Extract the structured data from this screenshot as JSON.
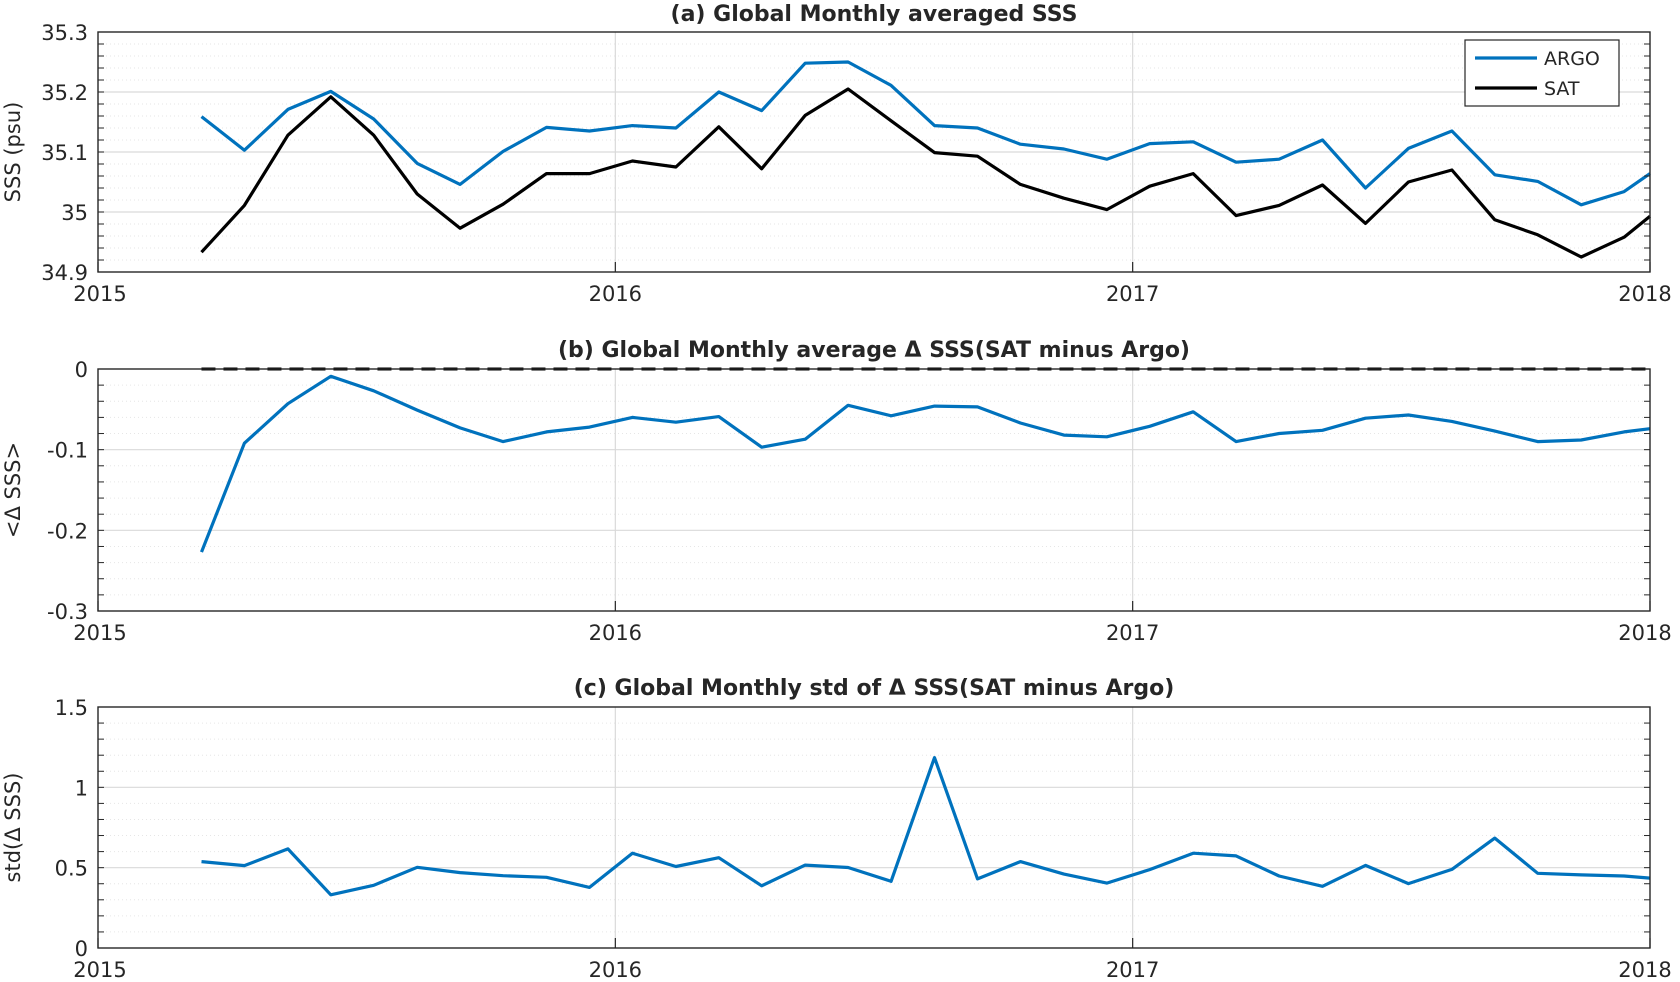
{
  "figure": {
    "background": "#ffffff"
  },
  "colors": {
    "argo": "#0072BD",
    "sat": "#000000",
    "axis": "#262626",
    "grid_major": "#d9d9d9",
    "grid_minor": "#e6e6e6"
  },
  "chart_data": [
    {
      "type": "line",
      "title": "(a) Global Monthly averaged SSS",
      "xlabel": "",
      "ylabel": "SSS (psu)",
      "xlim": [
        2015,
        2018
      ],
      "ylim": [
        34.9,
        35.3
      ],
      "xticks": [
        2015,
        2016,
        2017,
        2018
      ],
      "xtick_labels": [
        "2015",
        "2016",
        "2017",
        "2018"
      ],
      "yticks": [
        34.9,
        35,
        35.1,
        35.2,
        35.3
      ],
      "ytick_labels": [
        "34.9",
        "35",
        "35.1",
        "35.2",
        "35.3"
      ],
      "minor_yticks_step": 0.02,
      "grid": true,
      "legend": {
        "placement": "top-right",
        "entries": [
          "ARGO",
          "SAT"
        ]
      },
      "x": [
        2015.2,
        2015.283,
        2015.367,
        2015.45,
        2015.533,
        2015.617,
        2015.7,
        2015.783,
        2015.867,
        2015.95,
        2016.033,
        2016.117,
        2016.2,
        2016.283,
        2016.367,
        2016.45,
        2016.533,
        2016.617,
        2016.7,
        2016.783,
        2016.867,
        2016.95,
        2017.033,
        2017.117,
        2017.2,
        2017.283,
        2017.367,
        2017.45,
        2017.533,
        2017.617,
        2017.7,
        2017.783,
        2017.867,
        2017.95,
        2018.0
      ],
      "series": [
        {
          "name": "ARGO",
          "color": "#0072BD",
          "values": [
            35.159,
            35.103,
            35.171,
            35.201,
            35.155,
            35.081,
            35.046,
            35.101,
            35.141,
            35.135,
            35.144,
            35.14,
            35.2,
            35.169,
            35.248,
            35.25,
            35.211,
            35.144,
            35.14,
            35.113,
            35.105,
            35.088,
            35.114,
            35.117,
            35.083,
            35.088,
            35.12,
            35.04,
            35.106,
            35.135,
            35.062,
            35.051,
            35.012,
            35.034,
            35.064
          ]
        },
        {
          "name": "SAT",
          "color": "#000000",
          "values": [
            34.933,
            35.011,
            35.128,
            35.192,
            35.128,
            35.03,
            34.973,
            35.013,
            35.064,
            35.064,
            35.085,
            35.075,
            35.142,
            35.072,
            35.161,
            35.205,
            35.152,
            35.099,
            35.093,
            35.046,
            35.023,
            35.004,
            35.043,
            35.064,
            34.994,
            35.011,
            35.045,
            34.981,
            35.05,
            35.07,
            34.987,
            34.962,
            34.925,
            34.958,
            34.993
          ]
        }
      ]
    },
    {
      "type": "line",
      "title": "(b) Global Monthly average Δ SSS(SAT minus Argo)",
      "xlabel": "",
      "ylabel": "<Δ SSS>",
      "xlim": [
        2015,
        2018
      ],
      "ylim": [
        -0.3,
        0
      ],
      "xticks": [
        2015,
        2016,
        2017,
        2018
      ],
      "xtick_labels": [
        "2015",
        "2016",
        "2017",
        "2018"
      ],
      "yticks": [
        -0.3,
        -0.2,
        -0.1,
        0
      ],
      "ytick_labels": [
        "-0.3",
        "-0.2",
        "-0.1",
        "0"
      ],
      "minor_yticks_step": 0.02,
      "grid": true,
      "reference_line": {
        "y": 0,
        "style": "dashed",
        "color": "#000000"
      },
      "x": [
        2015.2,
        2015.283,
        2015.367,
        2015.45,
        2015.533,
        2015.617,
        2015.7,
        2015.783,
        2015.867,
        2015.95,
        2016.033,
        2016.117,
        2016.2,
        2016.283,
        2016.367,
        2016.45,
        2016.533,
        2016.617,
        2016.7,
        2016.783,
        2016.867,
        2016.95,
        2017.033,
        2017.117,
        2017.2,
        2017.283,
        2017.367,
        2017.45,
        2017.533,
        2017.617,
        2017.7,
        2017.783,
        2017.867,
        2017.95,
        2018.0
      ],
      "series": [
        {
          "color": "#0072BD",
          "values": [
            -0.227,
            -0.092,
            -0.043,
            -0.009,
            -0.027,
            -0.051,
            -0.073,
            -0.09,
            -0.078,
            -0.072,
            -0.06,
            -0.066,
            -0.059,
            -0.097,
            -0.087,
            -0.045,
            -0.058,
            -0.046,
            -0.047,
            -0.067,
            -0.082,
            -0.084,
            -0.071,
            -0.053,
            -0.09,
            -0.08,
            -0.076,
            -0.061,
            -0.057,
            -0.065,
            -0.077,
            -0.09,
            -0.088,
            -0.078,
            -0.074
          ]
        }
      ]
    },
    {
      "type": "line",
      "title": "(c) Global Monthly std of Δ SSS(SAT minus Argo)",
      "xlabel": "",
      "ylabel": "std(Δ SSS)",
      "xlim": [
        2015,
        2018
      ],
      "ylim": [
        0,
        1.5
      ],
      "xticks": [
        2015,
        2016,
        2017,
        2018
      ],
      "xtick_labels": [
        "2015",
        "2016",
        "2017",
        "2018"
      ],
      "yticks": [
        0,
        0.5,
        1,
        1.5
      ],
      "ytick_labels": [
        "0",
        "0.5",
        "1",
        "1.5"
      ],
      "minor_yticks_step": 0.1,
      "grid": true,
      "x": [
        2015.2,
        2015.283,
        2015.367,
        2015.45,
        2015.533,
        2015.617,
        2015.7,
        2015.783,
        2015.867,
        2015.95,
        2016.033,
        2016.117,
        2016.2,
        2016.283,
        2016.367,
        2016.45,
        2016.533,
        2016.617,
        2016.7,
        2016.783,
        2016.867,
        2016.95,
        2017.033,
        2017.117,
        2017.2,
        2017.283,
        2017.367,
        2017.45,
        2017.533,
        2017.617,
        2017.7,
        2017.783,
        2017.867,
        2017.95,
        2018.0
      ],
      "series": [
        {
          "color": "#0072BD",
          "values": [
            0.538,
            0.513,
            0.617,
            0.331,
            0.39,
            0.502,
            0.469,
            0.45,
            0.44,
            0.377,
            0.59,
            0.507,
            0.562,
            0.387,
            0.516,
            0.501,
            0.415,
            1.185,
            0.43,
            0.538,
            0.46,
            0.404,
            0.488,
            0.59,
            0.573,
            0.448,
            0.384,
            0.514,
            0.401,
            0.489,
            0.684,
            0.465,
            0.455,
            0.448,
            0.435
          ]
        }
      ]
    }
  ]
}
